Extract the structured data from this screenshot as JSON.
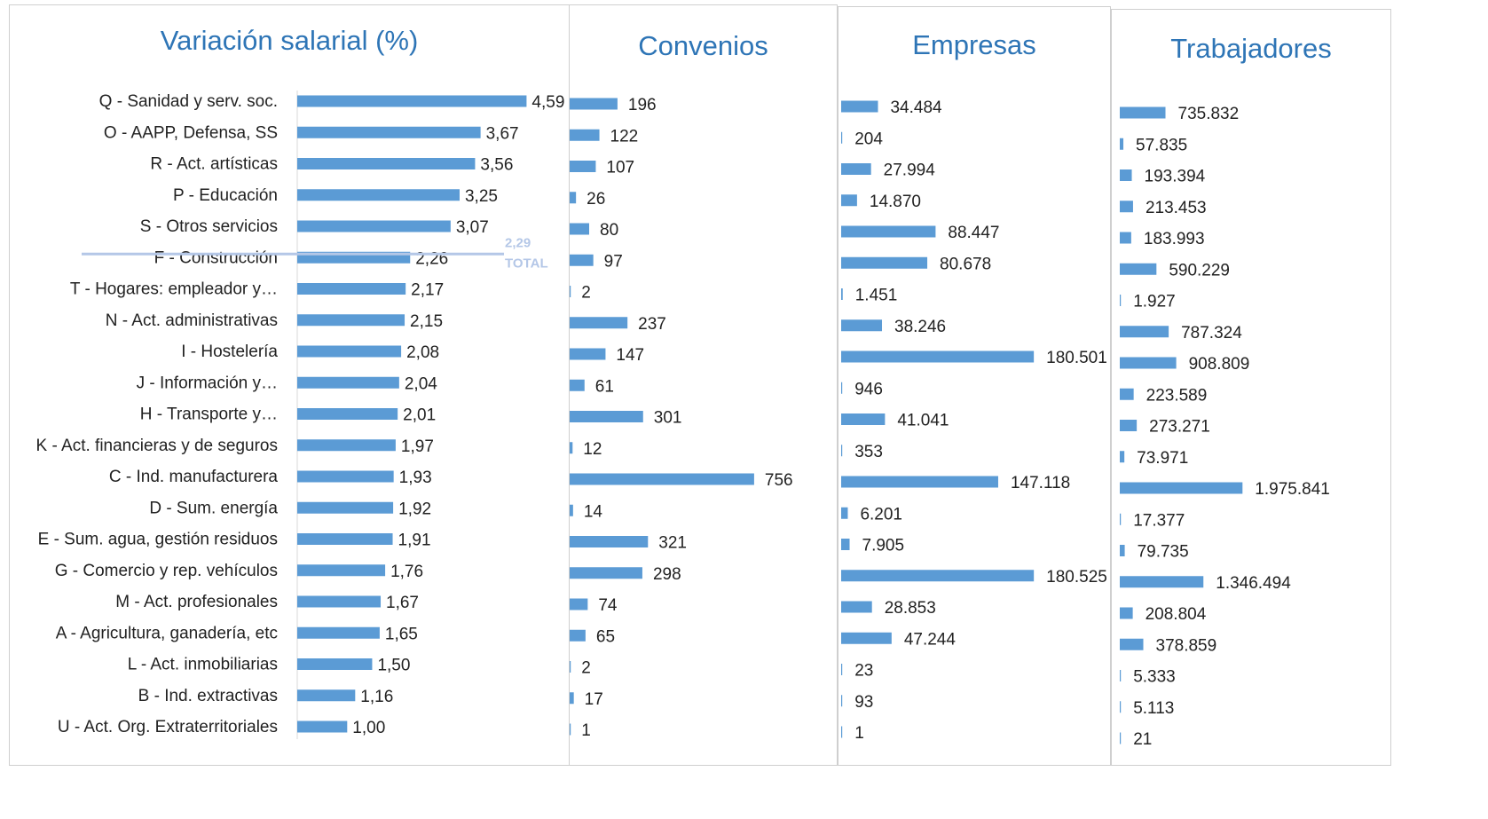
{
  "panels": {
    "salary": {
      "title": "Variación salarial (%)"
    },
    "agreements": {
      "title": "Convenios"
    },
    "companies": {
      "title": "Empresas"
    },
    "workers": {
      "title": "Trabajadores"
    }
  },
  "chart_data": [
    {
      "type": "bar",
      "orientation": "horizontal",
      "title": "Variación salarial (%)",
      "bar_color": "#5b9bd5",
      "categories": [
        "Q - Sanidad y serv. soc.",
        "O - AAPP, Defensa, SS",
        "R - Act. artísticas",
        "P - Educación",
        "S - Otros servicios",
        "F - Construcción",
        "T - Hogares: empleador y…",
        "N - Act. administrativas",
        "I - Hostelería",
        "J - Información y…",
        "H - Transporte y…",
        "K - Act. financieras y de seguros",
        "C - Ind. manufacturera",
        "D - Sum. energía",
        "E - Sum. agua, gestión residuos",
        "G - Comercio y rep. vehículos",
        "M - Act. profesionales",
        "A - Agricultura, ganadería, etc",
        "L - Act. inmobiliarias",
        "B - Ind. extractivas",
        "U - Act. Org. Extraterritoriales"
      ],
      "values": [
        4.59,
        3.67,
        3.56,
        3.25,
        3.07,
        2.26,
        2.17,
        2.15,
        2.08,
        2.04,
        2.01,
        1.97,
        1.93,
        1.92,
        1.91,
        1.76,
        1.67,
        1.65,
        1.5,
        1.16,
        1.0
      ],
      "value_labels": [
        "4,59",
        "3,67",
        "3,56",
        "3,25",
        "3,07",
        "2,26",
        "2,17",
        "2,15",
        "2,08",
        "2,04",
        "2,01",
        "1,97",
        "1,93",
        "1,92",
        "1,91",
        "1,76",
        "1,67",
        "1,65",
        "1,50",
        "1,16",
        "1,00"
      ],
      "reference_line": {
        "value": 2.29,
        "value_label": "2,29",
        "label": "TOTAL",
        "color": "#b4c7e7"
      }
    },
    {
      "type": "bar",
      "orientation": "horizontal",
      "title": "Convenios",
      "bar_color": "#5b9bd5",
      "values": [
        196,
        122,
        107,
        26,
        80,
        97,
        2,
        237,
        147,
        61,
        301,
        12,
        756,
        14,
        321,
        298,
        74,
        65,
        2,
        17,
        1
      ],
      "value_labels": [
        "196",
        "122",
        "107",
        "26",
        "80",
        "97",
        "2",
        "237",
        "147",
        "61",
        "301",
        "12",
        "756",
        "14",
        "321",
        "298",
        "74",
        "65",
        "2",
        "17",
        "1"
      ]
    },
    {
      "type": "bar",
      "orientation": "horizontal",
      "title": "Empresas",
      "bar_color": "#5b9bd5",
      "values": [
        34484,
        204,
        27994,
        14870,
        88447,
        80678,
        1451,
        38246,
        180501,
        946,
        41041,
        353,
        147118,
        6201,
        7905,
        180525,
        28853,
        47244,
        23,
        93,
        1
      ],
      "value_labels": [
        "34.484",
        "204",
        "27.994",
        "14.870",
        "88.447",
        "80.678",
        "1.451",
        "38.246",
        "180.501",
        "946",
        "41.041",
        "353",
        "147.118",
        "6.201",
        "7.905",
        "180.525",
        "28.853",
        "47.244",
        "23",
        "93",
        "1"
      ]
    },
    {
      "type": "bar",
      "orientation": "horizontal",
      "title": "Trabajadores",
      "bar_color": "#5b9bd5",
      "values": [
        735832,
        57835,
        193394,
        213453,
        183993,
        590229,
        1927,
        787324,
        908809,
        223589,
        273271,
        73971,
        1975841,
        17377,
        79735,
        1346494,
        208804,
        378859,
        5333,
        5113,
        21
      ],
      "value_labels": [
        "735.832",
        "57.835",
        "193.394",
        "213.453",
        "183.993",
        "590.229",
        "1.927",
        "787.324",
        "908.809",
        "223.589",
        "273.271",
        "73.971",
        "1.975.841",
        "17.377",
        "79.735",
        "1.346.494",
        "208.804",
        "378.859",
        "5.333",
        "5.113",
        "21"
      ]
    }
  ]
}
